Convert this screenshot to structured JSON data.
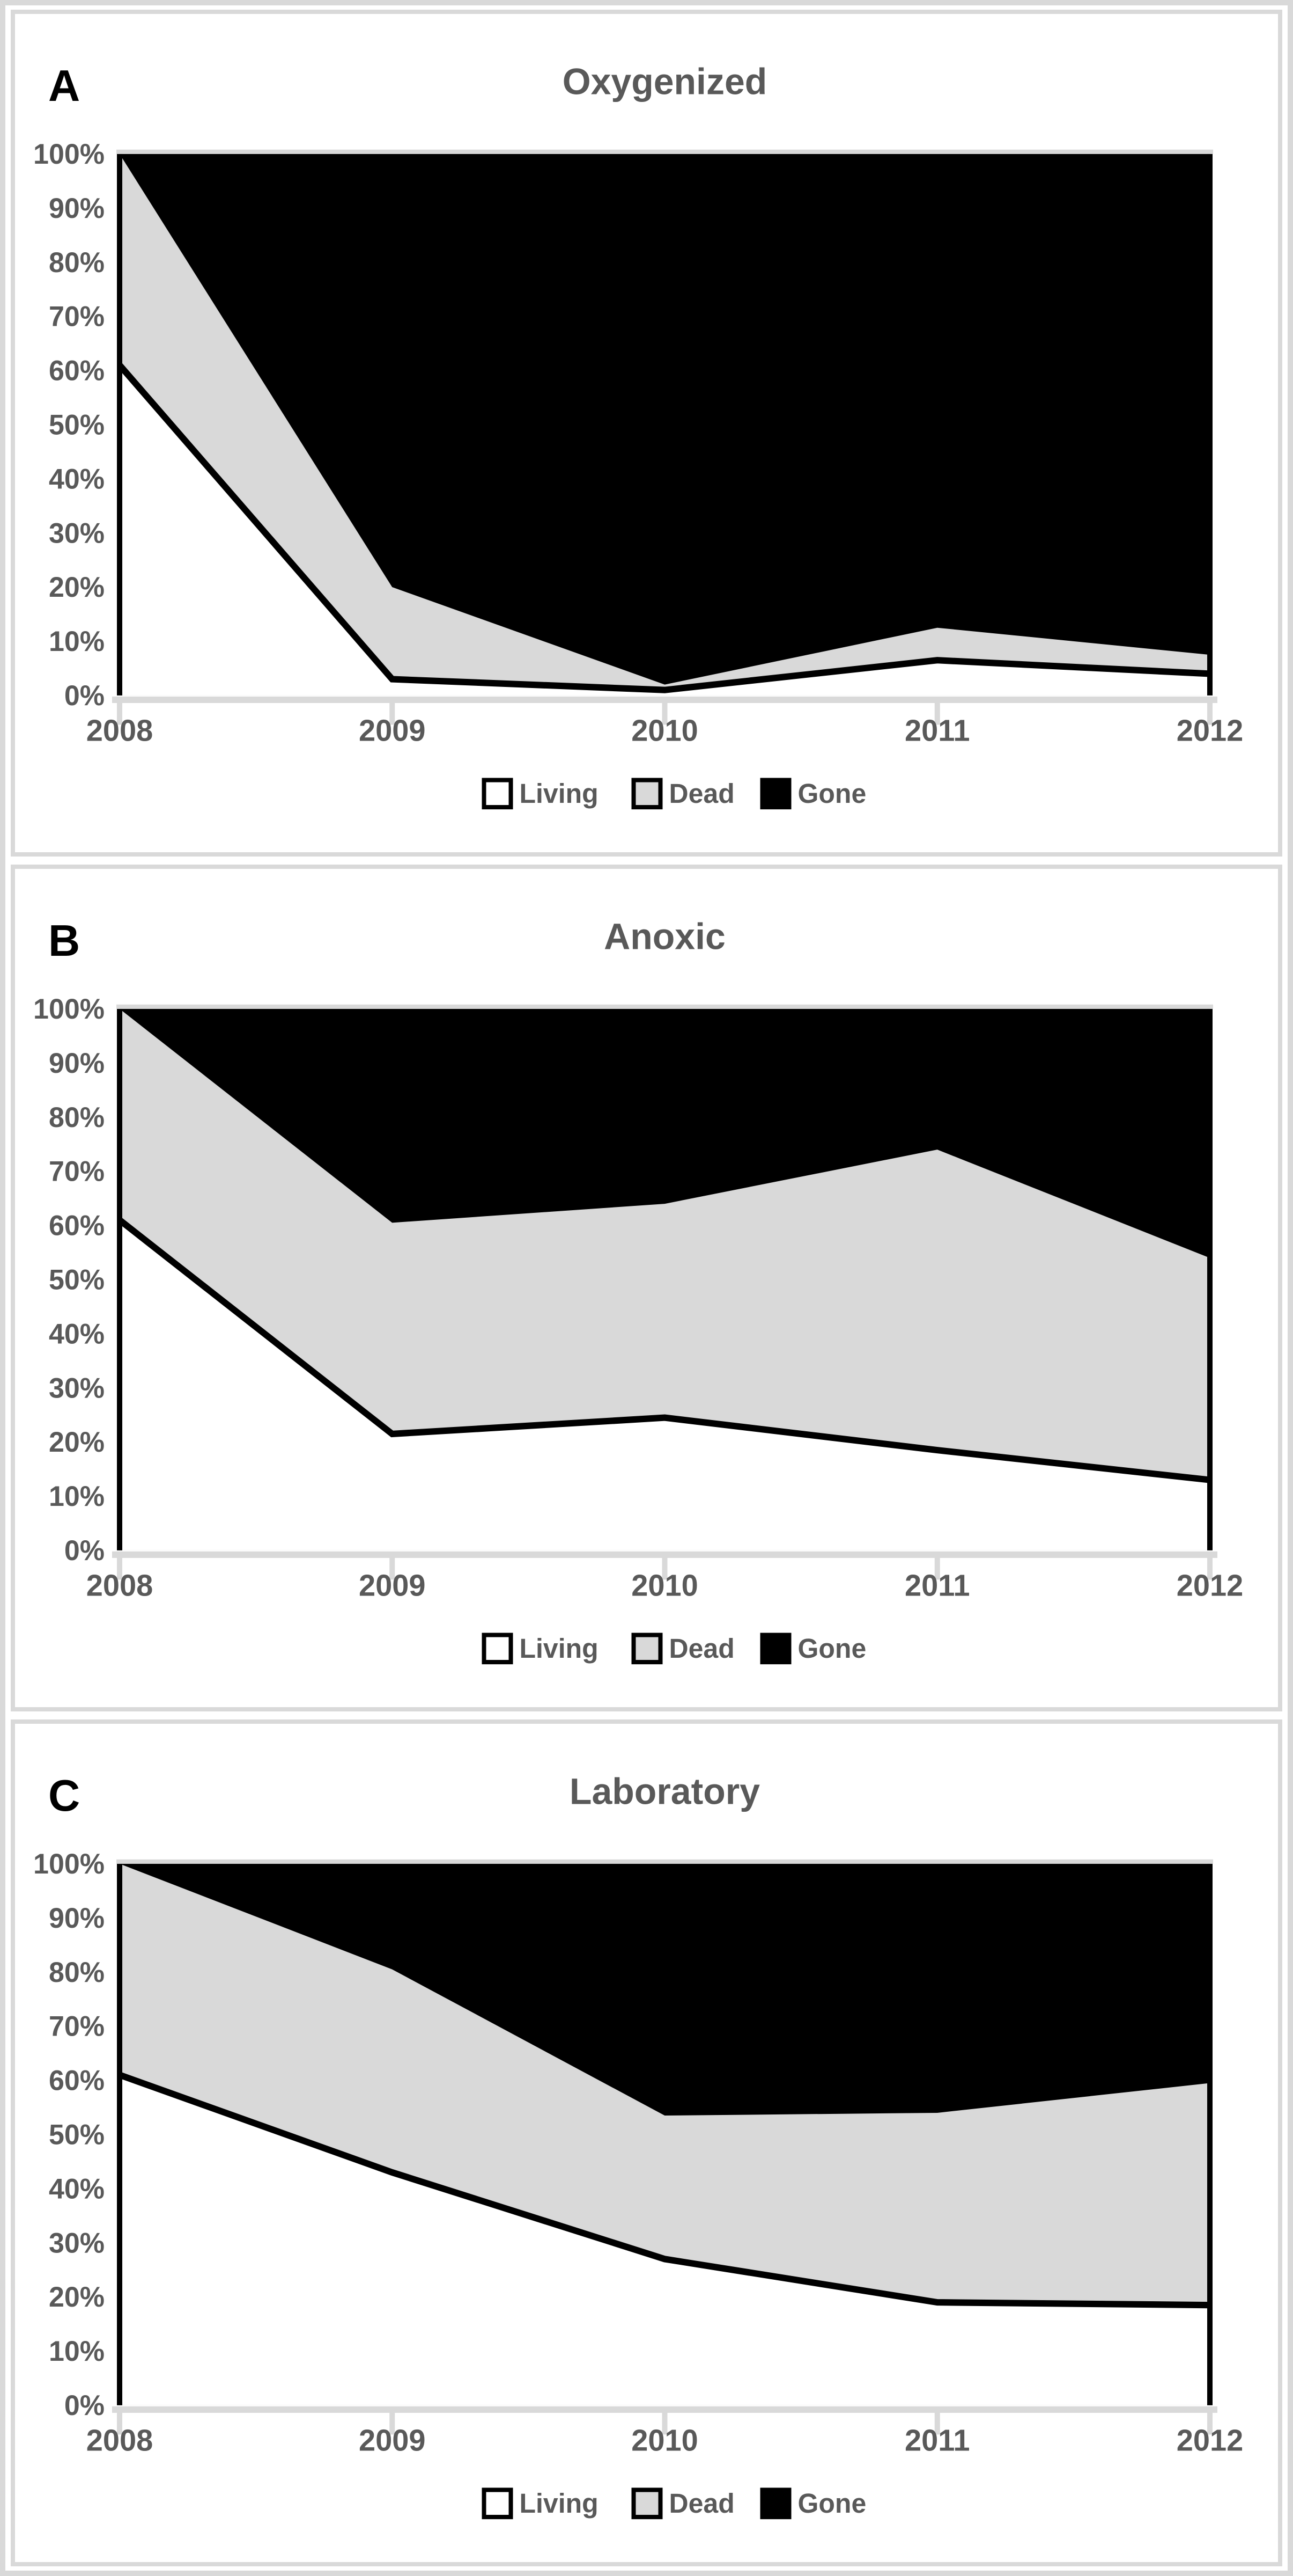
{
  "page": {
    "background": "#ffffff",
    "frame_color": "#d9d9d9",
    "text_color": "#595959"
  },
  "legend": {
    "items": [
      {
        "label": "Living",
        "color": "#ffffff"
      },
      {
        "label": "Dead",
        "color": "#d9d9d9"
      },
      {
        "label": "Gone",
        "color": "#000000"
      }
    ],
    "position": "bottom"
  },
  "chart_data": [
    {
      "type": "area",
      "stacked_to_100": true,
      "panel_label": "A",
      "title": "Oxygenized",
      "x": [
        "2008",
        "2009",
        "2010",
        "2011",
        "2012"
      ],
      "series": [
        {
          "name": "Living",
          "color": "#ffffff",
          "values": [
            61,
            3,
            1,
            6.5,
            4
          ]
        },
        {
          "name": "Dead",
          "color": "#d9d9d9",
          "values": [
            39,
            17,
            1,
            6,
            3.5
          ]
        },
        {
          "name": "Gone",
          "color": "#000000",
          "values": [
            0,
            80,
            98,
            87.5,
            92.5
          ]
        }
      ],
      "ylim": [
        0,
        100
      ],
      "ytick_step": 10,
      "y_tick_labels": [
        "0%",
        "10%",
        "20%",
        "30%",
        "40%",
        "50%",
        "60%",
        "70%",
        "80%",
        "90%",
        "100%"
      ],
      "grid": false,
      "legend_position": "bottom"
    },
    {
      "type": "area",
      "stacked_to_100": true,
      "panel_label": "B",
      "title": "Anoxic",
      "x": [
        "2008",
        "2009",
        "2010",
        "2011",
        "2012"
      ],
      "series": [
        {
          "name": "Living",
          "color": "#ffffff",
          "values": [
            61,
            21.5,
            24.5,
            18.5,
            13
          ]
        },
        {
          "name": "Dead",
          "color": "#d9d9d9",
          "values": [
            39,
            39,
            39.5,
            55.5,
            41
          ]
        },
        {
          "name": "Gone",
          "color": "#000000",
          "values": [
            0,
            39.5,
            36,
            26,
            46
          ]
        }
      ],
      "ylim": [
        0,
        100
      ],
      "ytick_step": 10,
      "y_tick_labels": [
        "0%",
        "10%",
        "20%",
        "30%",
        "40%",
        "50%",
        "60%",
        "70%",
        "80%",
        "90%",
        "100%"
      ],
      "grid": false,
      "legend_position": "bottom"
    },
    {
      "type": "area",
      "stacked_to_100": true,
      "panel_label": "C",
      "title": "Laboratory",
      "x": [
        "2008",
        "2009",
        "2010",
        "2011",
        "2012"
      ],
      "series": [
        {
          "name": "Living",
          "color": "#ffffff",
          "values": [
            61,
            43,
            27,
            19,
            18.5
          ]
        },
        {
          "name": "Dead",
          "color": "#d9d9d9",
          "values": [
            39,
            37.5,
            26.5,
            35,
            41
          ]
        },
        {
          "name": "Gone",
          "color": "#000000",
          "values": [
            0,
            19.5,
            46.5,
            46,
            40.5
          ]
        }
      ],
      "ylim": [
        0,
        100
      ],
      "ytick_step": 10,
      "y_tick_labels": [
        "0%",
        "10%",
        "20%",
        "30%",
        "40%",
        "50%",
        "60%",
        "70%",
        "80%",
        "90%",
        "100%"
      ],
      "grid": false,
      "legend_position": "bottom"
    }
  ]
}
